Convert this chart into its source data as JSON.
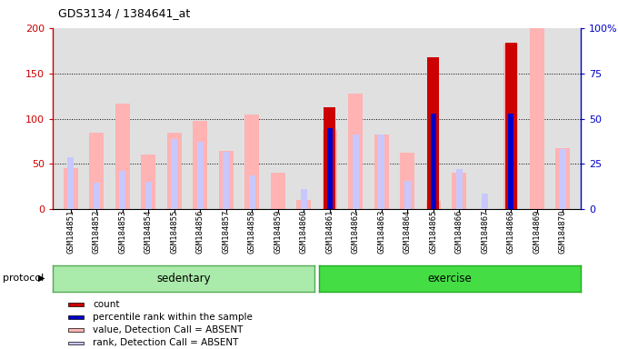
{
  "title": "GDS3134 / 1384641_at",
  "samples": [
    "GSM184851",
    "GSM184852",
    "GSM184853",
    "GSM184854",
    "GSM184855",
    "GSM184856",
    "GSM184857",
    "GSM184858",
    "GSM184859",
    "GSM184860",
    "GSM184861",
    "GSM184862",
    "GSM184863",
    "GSM184864",
    "GSM184865",
    "GSM184866",
    "GSM184867",
    "GSM184868",
    "GSM184869",
    "GSM184870"
  ],
  "value_absent": [
    45,
    85,
    117,
    60,
    85,
    98,
    65,
    105,
    40,
    10,
    88,
    128,
    83,
    62,
    9,
    40,
    0,
    183,
    200,
    68
  ],
  "rank_absent_scaled": [
    57,
    29,
    42,
    30,
    78,
    75,
    64,
    37,
    0,
    22,
    0,
    83,
    83,
    31,
    13,
    44,
    17,
    53,
    0,
    67
  ],
  "count_red": [
    0,
    0,
    0,
    0,
    0,
    0,
    0,
    0,
    0,
    0,
    113,
    0,
    0,
    0,
    168,
    0,
    0,
    184,
    0,
    0
  ],
  "rank_blue_scaled": [
    0,
    0,
    0,
    0,
    0,
    0,
    0,
    0,
    0,
    0,
    90,
    0,
    0,
    0,
    106,
    0,
    0,
    106,
    0,
    0
  ],
  "ylim_left": [
    0,
    200
  ],
  "left_ticks": [
    0,
    50,
    100,
    150,
    200
  ],
  "right_ticks": [
    0,
    25,
    50,
    75,
    100
  ],
  "right_tick_labels": [
    "0",
    "25",
    "50",
    "75",
    "100%"
  ],
  "left_tick_labels": [
    "0",
    "50",
    "100",
    "150",
    "200"
  ],
  "color_value_absent": "#ffb3b3",
  "color_rank_absent": "#c8c8ff",
  "color_count": "#cc0000",
  "color_rank_blue": "#0000cc",
  "bg_plot": "#e0e0e0",
  "protocol_label": "protocol",
  "sedentary_label": "sedentary",
  "exercise_label": "exercise",
  "legend_items": [
    {
      "color": "#cc0000",
      "label": "count"
    },
    {
      "color": "#0000cc",
      "label": "percentile rank within the sample"
    },
    {
      "color": "#ffb3b3",
      "label": "value, Detection Call = ABSENT"
    },
    {
      "color": "#c8c8ff",
      "label": "rank, Detection Call = ABSENT"
    }
  ],
  "n_sedentary": 10,
  "n_total": 20
}
